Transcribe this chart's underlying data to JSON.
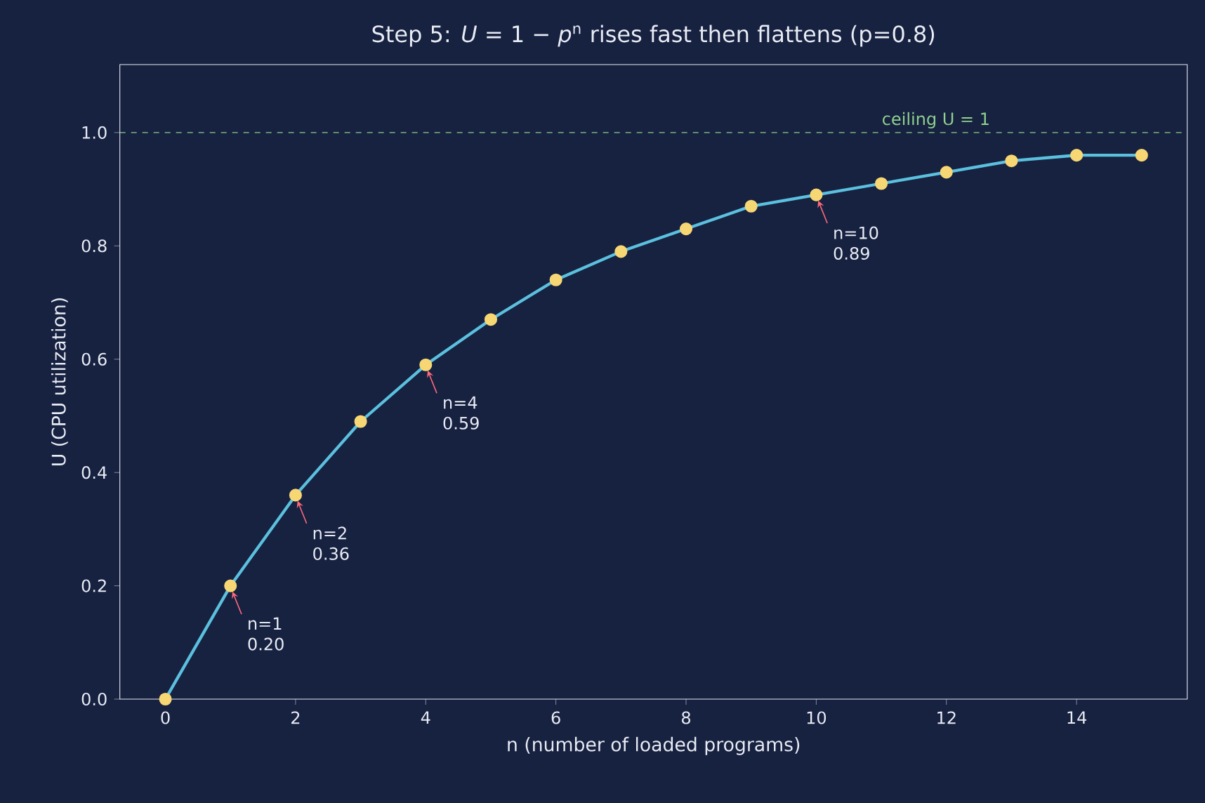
{
  "chart_data": {
    "type": "line",
    "title": "Step 5: *U* = 1 − *p*$^{n}$ rises fast then flattens  (p=0.8)",
    "xlabel": "n  (number of loaded programs)",
    "ylabel": "U  (CPU utilization)",
    "x": [
      0,
      1,
      2,
      3,
      4,
      5,
      6,
      7,
      8,
      9,
      10,
      11,
      12,
      13,
      14,
      15
    ],
    "series": [
      {
        "color": "#5bc0de",
        "values": [
          0.0,
          0.2,
          0.36,
          0.49,
          0.59,
          0.67,
          0.74,
          0.79,
          0.83,
          0.87,
          0.89,
          0.91,
          0.93,
          0.95,
          0.96,
          0.96
        ]
      }
    ],
    "marker": "circle",
    "grid": false,
    "xlim": [
      -0.7,
      15.7
    ],
    "ylim": [
      0,
      1.12
    ],
    "xticks": [
      0,
      2,
      4,
      6,
      8,
      10,
      12,
      14
    ],
    "yticks": [
      {
        "value": 0,
        "label": "0.0"
      },
      {
        "value": 0.2,
        "label": "0.2"
      },
      {
        "value": 0.4,
        "label": "0.4"
      },
      {
        "value": 0.6,
        "label": "0.6"
      },
      {
        "value": 0.8,
        "label": "0.8"
      },
      {
        "value": 1.0,
        "label": "1.0"
      }
    ],
    "ref_lines": [
      {
        "axis": "y",
        "value": 1,
        "label": "ceiling U = 1",
        "color": "#8fd18f",
        "line_style": "dashed"
      }
    ],
    "annotations": [
      {
        "text": "n=1 0.20",
        "x": 1,
        "y": 0.2
      },
      {
        "text": "n=2 0.36",
        "x": 2,
        "y": 0.36
      },
      {
        "text": "n=4 0.59",
        "x": 4,
        "y": 0.59
      },
      {
        "text": "n=10 0.89",
        "x": 10,
        "y": 0.89
      }
    ]
  }
}
